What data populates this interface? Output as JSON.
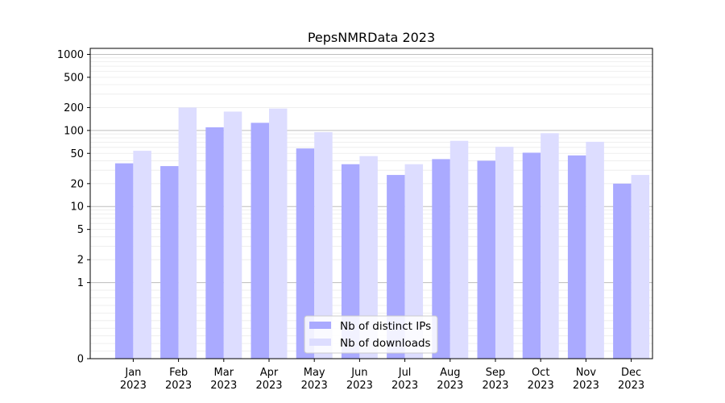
{
  "chart_data": {
    "type": "bar",
    "title": "PepsNMRData 2023",
    "xlabel": "",
    "ylabel": "",
    "yscale": "symlog",
    "ylim": [
      0,
      1200
    ],
    "yticks": [
      0,
      1,
      2,
      5,
      10,
      20,
      50,
      100,
      200,
      500,
      1000
    ],
    "categories": [
      "Jan\n2023",
      "Feb\n2023",
      "Mar\n2023",
      "Apr\n2023",
      "May\n2023",
      "Jun\n2023",
      "Jul\n2023",
      "Aug\n2023",
      "Sep\n2023",
      "Oct\n2023",
      "Nov\n2023",
      "Dec\n2023"
    ],
    "series": [
      {
        "name": "Nb of distinct IPs",
        "color": "#aaaaff",
        "values": [
          37,
          34,
          110,
          126,
          58,
          36,
          26,
          42,
          40,
          51,
          47,
          20
        ]
      },
      {
        "name": "Nb of downloads",
        "color": "#ddddff",
        "values": [
          54,
          200,
          177,
          194,
          95,
          46,
          36,
          73,
          61,
          92,
          71,
          26
        ]
      }
    ],
    "grid": true,
    "legend_position": "bottom-center"
  }
}
